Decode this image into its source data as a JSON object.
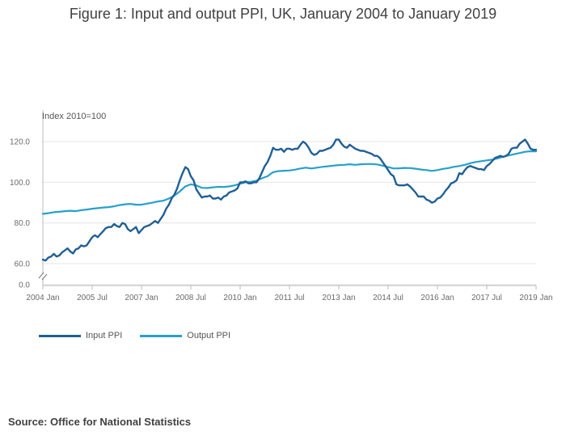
{
  "title": "Figure 1: Input and output PPI, UK, January 2004 to January 2019",
  "source": "Source: Office for National Statistics",
  "colors": {
    "input": "#206095",
    "output": "#27a0cc",
    "grid": "#e4e4e4",
    "axis": "#bbbbbb"
  },
  "chart_data": {
    "type": "line",
    "title": "Figure 1: Input and output PPI, UK, January 2004 to January 2019",
    "ylabel": "Index 2010=100",
    "xlabel": "",
    "ylim": [
      60,
      130
    ],
    "axis_break": true,
    "yticks": [
      {
        "value": 120,
        "label": "120.0"
      },
      {
        "value": 100,
        "label": "100.0"
      },
      {
        "value": 80,
        "label": "80.0"
      },
      {
        "value": 60,
        "label": "60.0"
      },
      {
        "value": 0,
        "label": "0.0"
      }
    ],
    "xticks": [
      {
        "month": 0,
        "label": "2004 Jan"
      },
      {
        "month": 18,
        "label": "2005 Jul"
      },
      {
        "month": 36,
        "label": "2007 Jan"
      },
      {
        "month": 54,
        "label": "2008 Jul"
      },
      {
        "month": 72,
        "label": "2010 Jan"
      },
      {
        "month": 90,
        "label": "2011 Jul"
      },
      {
        "month": 108,
        "label": "2013 Jan"
      },
      {
        "month": 126,
        "label": "2014 Jul"
      },
      {
        "month": 144,
        "label": "2016 Jan"
      },
      {
        "month": 162,
        "label": "2017 Jul"
      },
      {
        "month": 180,
        "label": "2019 Jan"
      }
    ],
    "legend_position": "bottom-left",
    "series": [
      {
        "name": "Input PPI",
        "color": "#206095",
        "points": [
          [
            0,
            62
          ],
          [
            1,
            61.5
          ],
          [
            2,
            63
          ],
          [
            3,
            63.5
          ],
          [
            4,
            64.8
          ],
          [
            5,
            63.5
          ],
          [
            6,
            64
          ],
          [
            7,
            65.5
          ],
          [
            8,
            66.5
          ],
          [
            9,
            67.5
          ],
          [
            10,
            66
          ],
          [
            11,
            65
          ],
          [
            12,
            67
          ],
          [
            13,
            67.5
          ],
          [
            14,
            69
          ],
          [
            15,
            68.5
          ],
          [
            16,
            69
          ],
          [
            17,
            71
          ],
          [
            18,
            73
          ],
          [
            19,
            74
          ],
          [
            20,
            73
          ],
          [
            21,
            74.5
          ],
          [
            22,
            76
          ],
          [
            23,
            77.5
          ],
          [
            24,
            78
          ],
          [
            25,
            78
          ],
          [
            26,
            79.5
          ],
          [
            27,
            78.5
          ],
          [
            28,
            78
          ],
          [
            29,
            80
          ],
          [
            30,
            79.5
          ],
          [
            31,
            77
          ],
          [
            32,
            76
          ],
          [
            33,
            77
          ],
          [
            34,
            78
          ],
          [
            35,
            75
          ],
          [
            36,
            76.5
          ],
          [
            37,
            78
          ],
          [
            38,
            78.5
          ],
          [
            39,
            79
          ],
          [
            40,
            80
          ],
          [
            41,
            81
          ],
          [
            42,
            80
          ],
          [
            43,
            82
          ],
          [
            44,
            84
          ],
          [
            45,
            87
          ],
          [
            46,
            89
          ],
          [
            47,
            92
          ],
          [
            48,
            94
          ],
          [
            49,
            97
          ],
          [
            50,
            101
          ],
          [
            51,
            104.5
          ],
          [
            52,
            107.5
          ],
          [
            53,
            106.5
          ],
          [
            54,
            103
          ],
          [
            55,
            101
          ],
          [
            56,
            96.5
          ],
          [
            57,
            94.5
          ],
          [
            58,
            92.5
          ],
          [
            59,
            93
          ],
          [
            60,
            93
          ],
          [
            61,
            93.5
          ],
          [
            62,
            92
          ],
          [
            63,
            92
          ],
          [
            64,
            92.5
          ],
          [
            65,
            91.5
          ],
          [
            66,
            93
          ],
          [
            67,
            93.5
          ],
          [
            68,
            95
          ],
          [
            69,
            95.5
          ],
          [
            70,
            96
          ],
          [
            71,
            97
          ],
          [
            72,
            100
          ],
          [
            73,
            100
          ],
          [
            74,
            100.5
          ],
          [
            75,
            99.5
          ],
          [
            76,
            99.5
          ],
          [
            77,
            100
          ],
          [
            78,
            100
          ],
          [
            79,
            102
          ],
          [
            80,
            105
          ],
          [
            81,
            108
          ],
          [
            82,
            110
          ],
          [
            83,
            113
          ],
          [
            84,
            117
          ],
          [
            85,
            116
          ],
          [
            86,
            116
          ],
          [
            87,
            116.5
          ],
          [
            88,
            115
          ],
          [
            89,
            116.5
          ],
          [
            90,
            116.5
          ],
          [
            91,
            116
          ],
          [
            92,
            116.5
          ],
          [
            93,
            116.5
          ],
          [
            94,
            118.5
          ],
          [
            95,
            120
          ],
          [
            96,
            119
          ],
          [
            97,
            117
          ],
          [
            98,
            114.5
          ],
          [
            99,
            113.5
          ],
          [
            100,
            114
          ],
          [
            101,
            115.5
          ],
          [
            102,
            115.5
          ],
          [
            103,
            116
          ],
          [
            104,
            116.5
          ],
          [
            105,
            117
          ],
          [
            106,
            118.5
          ],
          [
            107,
            121
          ],
          [
            108,
            121
          ],
          [
            109,
            119
          ],
          [
            110,
            117.5
          ],
          [
            111,
            117
          ],
          [
            112,
            118.5
          ],
          [
            113,
            117.5
          ],
          [
            114,
            116.5
          ],
          [
            115,
            116
          ],
          [
            116,
            115.5
          ],
          [
            117,
            115.5
          ],
          [
            118,
            115
          ],
          [
            119,
            114.5
          ],
          [
            120,
            114
          ],
          [
            121,
            113
          ],
          [
            122,
            113
          ],
          [
            123,
            112
          ],
          [
            124,
            110
          ],
          [
            125,
            108
          ],
          [
            126,
            106
          ],
          [
            127,
            104
          ],
          [
            128,
            103
          ],
          [
            129,
            99
          ],
          [
            130,
            98.5
          ],
          [
            131,
            98.5
          ],
          [
            132,
            98.5
          ],
          [
            133,
            99
          ],
          [
            134,
            98
          ],
          [
            135,
            96.5
          ],
          [
            136,
            95
          ],
          [
            137,
            93
          ],
          [
            138,
            93
          ],
          [
            139,
            93
          ],
          [
            140,
            91.5
          ],
          [
            141,
            91
          ],
          [
            142,
            90
          ],
          [
            143,
            90.5
          ],
          [
            144,
            92
          ],
          [
            145,
            92.5
          ],
          [
            146,
            94
          ],
          [
            147,
            96
          ],
          [
            148,
            97.5
          ],
          [
            149,
            99.5
          ],
          [
            150,
            100
          ],
          [
            151,
            101
          ],
          [
            152,
            104.5
          ],
          [
            153,
            104
          ],
          [
            154,
            106
          ],
          [
            155,
            107.5
          ],
          [
            156,
            108
          ],
          [
            157,
            107.5
          ],
          [
            158,
            107
          ],
          [
            159,
            106.5
          ],
          [
            160,
            106.5
          ],
          [
            161,
            106
          ],
          [
            162,
            108
          ],
          [
            163,
            109
          ],
          [
            164,
            110.5
          ],
          [
            165,
            112
          ],
          [
            166,
            112.5
          ],
          [
            167,
            113
          ],
          [
            168,
            112.5
          ],
          [
            169,
            113
          ],
          [
            170,
            114
          ],
          [
            171,
            116.5
          ],
          [
            172,
            117
          ],
          [
            173,
            117
          ],
          [
            174,
            119
          ],
          [
            175,
            120
          ],
          [
            176,
            121
          ],
          [
            177,
            119
          ],
          [
            178,
            116.5
          ],
          [
            179,
            116
          ],
          [
            180,
            116
          ]
        ]
      },
      {
        "name": "Output PPI",
        "color": "#27a0cc",
        "points": [
          [
            0,
            84.5
          ],
          [
            2,
            84.8
          ],
          [
            4,
            85.3
          ],
          [
            6,
            85.5
          ],
          [
            8,
            85.8
          ],
          [
            10,
            86
          ],
          [
            12,
            85.8
          ],
          [
            14,
            86.3
          ],
          [
            16,
            86.6
          ],
          [
            18,
            87
          ],
          [
            20,
            87.3
          ],
          [
            22,
            87.6
          ],
          [
            24,
            87.8
          ],
          [
            26,
            88.2
          ],
          [
            28,
            88.8
          ],
          [
            30,
            89.2
          ],
          [
            32,
            89.4
          ],
          [
            34,
            89
          ],
          [
            36,
            89
          ],
          [
            38,
            89.5
          ],
          [
            40,
            90
          ],
          [
            42,
            90.6
          ],
          [
            44,
            91
          ],
          [
            46,
            92
          ],
          [
            48,
            93.5
          ],
          [
            50,
            95.5
          ],
          [
            52,
            98
          ],
          [
            54,
            99
          ],
          [
            56,
            98.5
          ],
          [
            58,
            97.3
          ],
          [
            60,
            97.2
          ],
          [
            62,
            97.5
          ],
          [
            64,
            97.8
          ],
          [
            66,
            97.7
          ],
          [
            68,
            98
          ],
          [
            70,
            98.5
          ],
          [
            72,
            99.3
          ],
          [
            74,
            100
          ],
          [
            76,
            100.3
          ],
          [
            78,
            100.8
          ],
          [
            80,
            102
          ],
          [
            82,
            103
          ],
          [
            84,
            105
          ],
          [
            86,
            105.5
          ],
          [
            88,
            105.7
          ],
          [
            90,
            105.8
          ],
          [
            92,
            106.2
          ],
          [
            94,
            106.8
          ],
          [
            96,
            107.2
          ],
          [
            98,
            106.8
          ],
          [
            100,
            107.2
          ],
          [
            102,
            107.6
          ],
          [
            104,
            107.9
          ],
          [
            106,
            108.2
          ],
          [
            108,
            108.5
          ],
          [
            110,
            108.6
          ],
          [
            112,
            108.9
          ],
          [
            114,
            108.6
          ],
          [
            116,
            108.9
          ],
          [
            118,
            109
          ],
          [
            120,
            109
          ],
          [
            122,
            108.8
          ],
          [
            124,
            108.2
          ],
          [
            126,
            107.5
          ],
          [
            128,
            106.8
          ],
          [
            130,
            106.9
          ],
          [
            132,
            107.1
          ],
          [
            134,
            107
          ],
          [
            136,
            106.7
          ],
          [
            138,
            106.3
          ],
          [
            140,
            106
          ],
          [
            142,
            105.6
          ],
          [
            144,
            106
          ],
          [
            146,
            106.6
          ],
          [
            148,
            107
          ],
          [
            150,
            107.6
          ],
          [
            152,
            108
          ],
          [
            154,
            108.6
          ],
          [
            156,
            109.4
          ],
          [
            158,
            110
          ],
          [
            160,
            110.4
          ],
          [
            162,
            110.8
          ],
          [
            164,
            111.2
          ],
          [
            166,
            111.8
          ],
          [
            168,
            112.6
          ],
          [
            170,
            113.2
          ],
          [
            172,
            113.8
          ],
          [
            174,
            114.4
          ],
          [
            176,
            115
          ],
          [
            178,
            115.3
          ],
          [
            180,
            115.2
          ]
        ]
      }
    ]
  }
}
